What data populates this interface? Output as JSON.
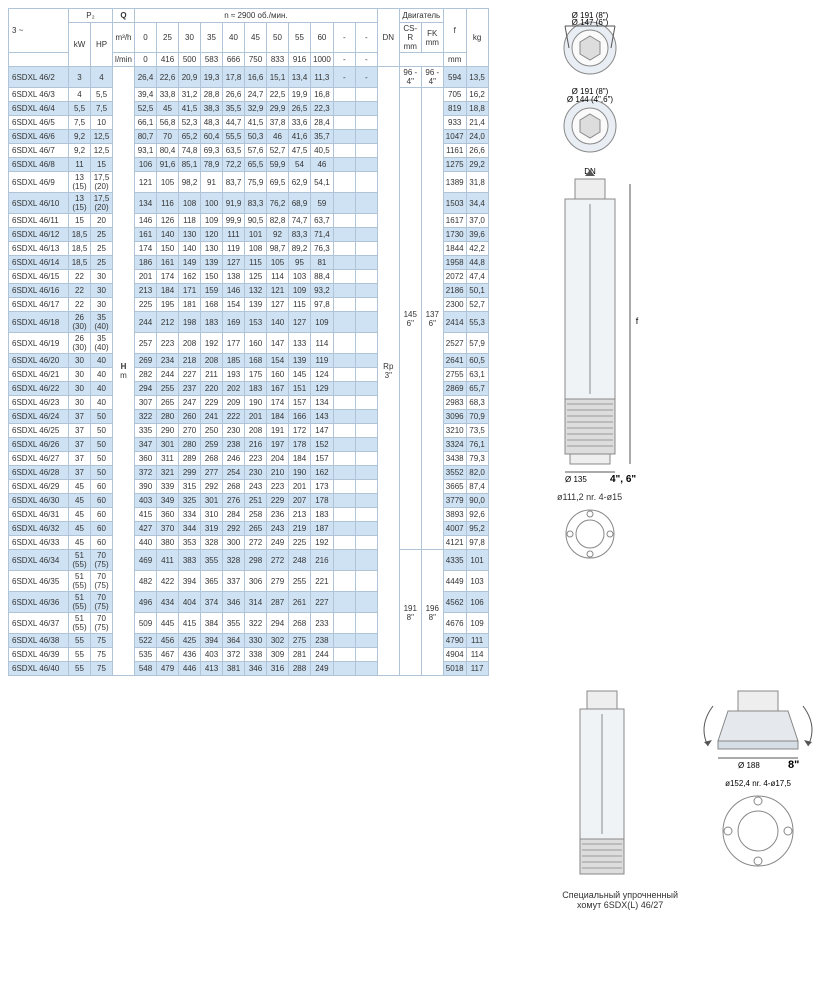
{
  "header": {
    "n_label": "n ≈ 2900 об./мин.",
    "motor_label": "Двигатель",
    "P2_label": "P₂",
    "three_phase": "3 ~",
    "Q_label": "Q",
    "Q_unit1": "m³/h",
    "Q_unit2": "l/min",
    "kW": "kW",
    "HP": "HP",
    "H_label": "H",
    "H_unit": "m",
    "DN": "DN",
    "CSR": "CS-R",
    "FK": "FK",
    "mm": "mm",
    "f": "f",
    "kg": "kg",
    "Rp": "Rp",
    "Rp_val": "3\""
  },
  "q_m3h": [
    "0",
    "25",
    "30",
    "35",
    "40",
    "45",
    "50",
    "55",
    "60",
    "-",
    "-"
  ],
  "q_lmin": [
    "0",
    "416",
    "500",
    "583",
    "666",
    "750",
    "833",
    "916",
    "1000",
    "-",
    "-"
  ],
  "motor_groups": [
    {
      "csr": "96 - 4\"",
      "fk": "96 - 4\"",
      "span": 1
    },
    {
      "csr": "145\n6\"",
      "fk": "137\n6\"",
      "span": 31
    },
    {
      "csr": "191\n8\"",
      "fk": "196\n8\"",
      "span": 7
    }
  ],
  "rows": [
    {
      "model": "6SDXL 46/2",
      "kw": "3",
      "hp": "4",
      "v": [
        "26,4",
        "22,6",
        "20,9",
        "19,3",
        "17,8",
        "16,6",
        "15,1",
        "13,4",
        "11,3",
        "-",
        "-"
      ],
      "f": "594",
      "kg": "13,5"
    },
    {
      "model": "6SDXL 46/3",
      "kw": "4",
      "hp": "5,5",
      "v": [
        "39,4",
        "33,8",
        "31,2",
        "28,8",
        "26,6",
        "24,7",
        "22,5",
        "19,9",
        "16,8",
        "",
        ""
      ],
      "f": "705",
      "kg": "16,2"
    },
    {
      "model": "6SDXL 46/4",
      "kw": "5,5",
      "hp": "7,5",
      "v": [
        "52,5",
        "45",
        "41,5",
        "38,3",
        "35,5",
        "32,9",
        "29,9",
        "26,5",
        "22,3",
        "",
        ""
      ],
      "f": "819",
      "kg": "18,8"
    },
    {
      "model": "6SDXL 46/5",
      "kw": "7,5",
      "hp": "10",
      "v": [
        "66,1",
        "56,8",
        "52,3",
        "48,3",
        "44,7",
        "41,5",
        "37,8",
        "33,6",
        "28,4",
        "",
        ""
      ],
      "f": "933",
      "kg": "21,4"
    },
    {
      "model": "6SDXL 46/6",
      "kw": "9,2",
      "hp": "12,5",
      "v": [
        "80,7",
        "70",
        "65,2",
        "60,4",
        "55,5",
        "50,3",
        "46",
        "41,6",
        "35,7",
        "",
        ""
      ],
      "f": "1047",
      "kg": "24,0"
    },
    {
      "model": "6SDXL 46/7",
      "kw": "9,2",
      "hp": "12,5",
      "v": [
        "93,1",
        "80,4",
        "74,8",
        "69,3",
        "63,5",
        "57,6",
        "52,7",
        "47,5",
        "40,5",
        "",
        ""
      ],
      "f": "1161",
      "kg": "26,6"
    },
    {
      "model": "6SDXL 46/8",
      "kw": "11",
      "hp": "15",
      "v": [
        "106",
        "91,6",
        "85,1",
        "78,9",
        "72,2",
        "65,5",
        "59,9",
        "54",
        "46",
        "",
        ""
      ],
      "f": "1275",
      "kg": "29,2"
    },
    {
      "model": "6SDXL 46/9",
      "kw": "13 (15)",
      "hp": "17,5 (20)",
      "v": [
        "121",
        "105",
        "98,2",
        "91",
        "83,7",
        "75,9",
        "69,5",
        "62,9",
        "54,1",
        "",
        ""
      ],
      "f": "1389",
      "kg": "31,8"
    },
    {
      "model": "6SDXL 46/10",
      "kw": "13 (15)",
      "hp": "17,5 (20)",
      "v": [
        "134",
        "116",
        "108",
        "100",
        "91,9",
        "83,3",
        "76,2",
        "68,9",
        "59",
        "",
        ""
      ],
      "f": "1503",
      "kg": "34,4"
    },
    {
      "model": "6SDXL 46/11",
      "kw": "15",
      "hp": "20",
      "v": [
        "146",
        "126",
        "118",
        "109",
        "99,9",
        "90,5",
        "82,8",
        "74,7",
        "63,7",
        "",
        ""
      ],
      "f": "1617",
      "kg": "37,0"
    },
    {
      "model": "6SDXL 46/12",
      "kw": "18,5",
      "hp": "25",
      "v": [
        "161",
        "140",
        "130",
        "120",
        "111",
        "101",
        "92",
        "83,3",
        "71,4",
        "",
        ""
      ],
      "f": "1730",
      "kg": "39,6"
    },
    {
      "model": "6SDXL 46/13",
      "kw": "18,5",
      "hp": "25",
      "v": [
        "174",
        "150",
        "140",
        "130",
        "119",
        "108",
        "98,7",
        "89,2",
        "76,3",
        "",
        ""
      ],
      "f": "1844",
      "kg": "42,2"
    },
    {
      "model": "6SDXL 46/14",
      "kw": "18,5",
      "hp": "25",
      "v": [
        "186",
        "161",
        "149",
        "139",
        "127",
        "115",
        "105",
        "95",
        "81",
        "",
        ""
      ],
      "f": "1958",
      "kg": "44,8"
    },
    {
      "model": "6SDXL 46/15",
      "kw": "22",
      "hp": "30",
      "v": [
        "201",
        "174",
        "162",
        "150",
        "138",
        "125",
        "114",
        "103",
        "88,4",
        "",
        ""
      ],
      "f": "2072",
      "kg": "47,4"
    },
    {
      "model": "6SDXL 46/16",
      "kw": "22",
      "hp": "30",
      "v": [
        "213",
        "184",
        "171",
        "159",
        "146",
        "132",
        "121",
        "109",
        "93,2",
        "",
        ""
      ],
      "f": "2186",
      "kg": "50,1"
    },
    {
      "model": "6SDXL 46/17",
      "kw": "22",
      "hp": "30",
      "v": [
        "225",
        "195",
        "181",
        "168",
        "154",
        "139",
        "127",
        "115",
        "97,8",
        "",
        ""
      ],
      "f": "2300",
      "kg": "52,7"
    },
    {
      "model": "6SDXL 46/18",
      "kw": "26 (30)",
      "hp": "35 (40)",
      "v": [
        "244",
        "212",
        "198",
        "183",
        "169",
        "153",
        "140",
        "127",
        "109",
        "",
        ""
      ],
      "f": "2414",
      "kg": "55,3"
    },
    {
      "model": "6SDXL 46/19",
      "kw": "26 (30)",
      "hp": "35 (40)",
      "v": [
        "257",
        "223",
        "208",
        "192",
        "177",
        "160",
        "147",
        "133",
        "114",
        "",
        ""
      ],
      "f": "2527",
      "kg": "57,9"
    },
    {
      "model": "6SDXL 46/20",
      "kw": "30",
      "hp": "40",
      "v": [
        "269",
        "234",
        "218",
        "208",
        "185",
        "168",
        "154",
        "139",
        "119",
        "",
        ""
      ],
      "f": "2641",
      "kg": "60,5"
    },
    {
      "model": "6SDXL 46/21",
      "kw": "30",
      "hp": "40",
      "v": [
        "282",
        "244",
        "227",
        "211",
        "193",
        "175",
        "160",
        "145",
        "124",
        "",
        ""
      ],
      "f": "2755",
      "kg": "63,1"
    },
    {
      "model": "6SDXL 46/22",
      "kw": "30",
      "hp": "40",
      "v": [
        "294",
        "255",
        "237",
        "220",
        "202",
        "183",
        "167",
        "151",
        "129",
        "",
        ""
      ],
      "f": "2869",
      "kg": "65,7"
    },
    {
      "model": "6SDXL 46/23",
      "kw": "30",
      "hp": "40",
      "v": [
        "307",
        "265",
        "247",
        "229",
        "209",
        "190",
        "174",
        "157",
        "134",
        "",
        ""
      ],
      "f": "2983",
      "kg": "68,3"
    },
    {
      "model": "6SDXL 46/24",
      "kw": "37",
      "hp": "50",
      "v": [
        "322",
        "280",
        "260",
        "241",
        "222",
        "201",
        "184",
        "166",
        "143",
        "",
        ""
      ],
      "f": "3096",
      "kg": "70,9"
    },
    {
      "model": "6SDXL 46/25",
      "kw": "37",
      "hp": "50",
      "v": [
        "335",
        "290",
        "270",
        "250",
        "230",
        "208",
        "191",
        "172",
        "147",
        "",
        ""
      ],
      "f": "3210",
      "kg": "73,5"
    },
    {
      "model": "6SDXL 46/26",
      "kw": "37",
      "hp": "50",
      "v": [
        "347",
        "301",
        "280",
        "259",
        "238",
        "216",
        "197",
        "178",
        "152",
        "",
        ""
      ],
      "f": "3324",
      "kg": "76,1"
    },
    {
      "model": "6SDXL 46/27",
      "kw": "37",
      "hp": "50",
      "v": [
        "360",
        "311",
        "289",
        "268",
        "246",
        "223",
        "204",
        "184",
        "157",
        "",
        ""
      ],
      "f": "3438",
      "kg": "79,3"
    },
    {
      "model": "6SDXL 46/28",
      "kw": "37",
      "hp": "50",
      "v": [
        "372",
        "321",
        "299",
        "277",
        "254",
        "230",
        "210",
        "190",
        "162",
        "",
        ""
      ],
      "f": "3552",
      "kg": "82,0"
    },
    {
      "model": "6SDXL 46/29",
      "kw": "45",
      "hp": "60",
      "v": [
        "390",
        "339",
        "315",
        "292",
        "268",
        "243",
        "223",
        "201",
        "173",
        "",
        ""
      ],
      "f": "3665",
      "kg": "87,4"
    },
    {
      "model": "6SDXL 46/30",
      "kw": "45",
      "hp": "60",
      "v": [
        "403",
        "349",
        "325",
        "301",
        "276",
        "251",
        "229",
        "207",
        "178",
        "",
        ""
      ],
      "f": "3779",
      "kg": "90,0"
    },
    {
      "model": "6SDXL 46/31",
      "kw": "45",
      "hp": "60",
      "v": [
        "415",
        "360",
        "334",
        "310",
        "284",
        "258",
        "236",
        "213",
        "183",
        "",
        ""
      ],
      "f": "3893",
      "kg": "92,6"
    },
    {
      "model": "6SDXL 46/32",
      "kw": "45",
      "hp": "60",
      "v": [
        "427",
        "370",
        "344",
        "319",
        "292",
        "265",
        "243",
        "219",
        "187",
        "",
        ""
      ],
      "f": "4007",
      "kg": "95,2"
    },
    {
      "model": "6SDXL 46/33",
      "kw": "45",
      "hp": "60",
      "v": [
        "440",
        "380",
        "353",
        "328",
        "300",
        "272",
        "249",
        "225",
        "192",
        "",
        ""
      ],
      "f": "4121",
      "kg": "97,8"
    },
    {
      "model": "6SDXL 46/34",
      "kw": "51 (55)",
      "hp": "70 (75)",
      "v": [
        "469",
        "411",
        "383",
        "355",
        "328",
        "298",
        "272",
        "248",
        "216",
        "",
        ""
      ],
      "f": "4335",
      "kg": "101"
    },
    {
      "model": "6SDXL 46/35",
      "kw": "51 (55)",
      "hp": "70 (75)",
      "v": [
        "482",
        "422",
        "394",
        "365",
        "337",
        "306",
        "279",
        "255",
        "221",
        "",
        ""
      ],
      "f": "4449",
      "kg": "103"
    },
    {
      "model": "6SDXL 46/36",
      "kw": "51 (55)",
      "hp": "70 (75)",
      "v": [
        "496",
        "434",
        "404",
        "374",
        "346",
        "314",
        "287",
        "261",
        "227",
        "",
        ""
      ],
      "f": "4562",
      "kg": "106"
    },
    {
      "model": "6SDXL 46/37",
      "kw": "51 (55)",
      "hp": "70 (75)",
      "v": [
        "509",
        "445",
        "415",
        "384",
        "355",
        "322",
        "294",
        "268",
        "233",
        "",
        ""
      ],
      "f": "4676",
      "kg": "109"
    },
    {
      "model": "6SDXL 46/38",
      "kw": "55",
      "hp": "75",
      "v": [
        "522",
        "456",
        "425",
        "394",
        "364",
        "330",
        "302",
        "275",
        "238",
        "",
        ""
      ],
      "f": "4790",
      "kg": "111"
    },
    {
      "model": "6SDXL 46/39",
      "kw": "55",
      "hp": "75",
      "v": [
        "535",
        "467",
        "436",
        "403",
        "372",
        "338",
        "309",
        "281",
        "244",
        "",
        ""
      ],
      "f": "4904",
      "kg": "114"
    },
    {
      "model": "6SDXL 46/40",
      "kw": "55",
      "hp": "75",
      "v": [
        "548",
        "479",
        "446",
        "413",
        "381",
        "346",
        "316",
        "288",
        "249",
        "",
        ""
      ],
      "f": "5018",
      "kg": "117"
    }
  ],
  "diagrams": {
    "top1": "Ø 191 (8\")",
    "top2": "Ø 147 (6\")",
    "mid1": "Ø 191 (8\")",
    "mid2": "Ø 144 (4\",6\")",
    "dn": "DN",
    "f": "f",
    "d135": "Ø 135",
    "size46": "4\", 6\"",
    "flange1": "ø111,2  nr. 4-ø15",
    "d188": "Ø 188",
    "size8": "8\"",
    "flange2": "ø152,4  nr. 4-ø17,5",
    "caption": "Специальный упрочненный\nхомут 6SDX(L) 46/27"
  },
  "colors": {
    "stripe": "#cfe2f3",
    "border": "#b0c4d8"
  }
}
